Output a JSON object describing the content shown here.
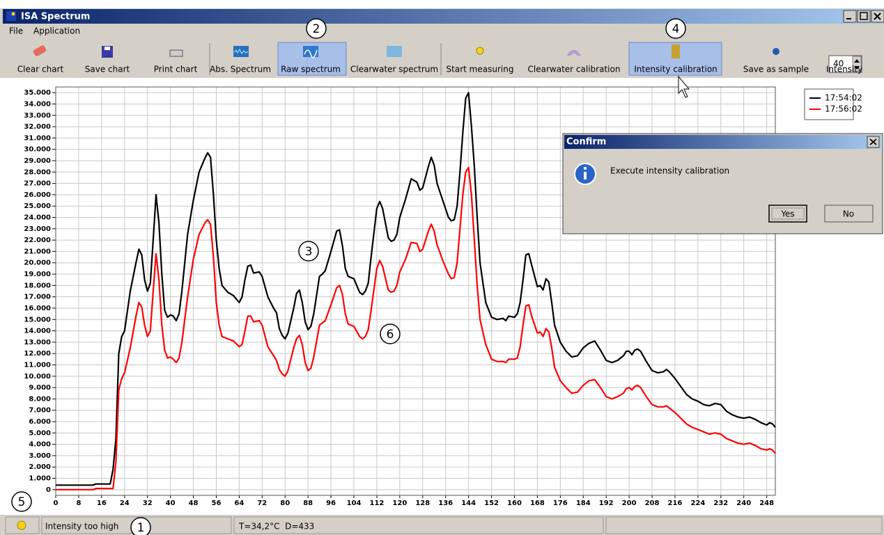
{
  "window": {
    "title": "ISA Spectrum"
  },
  "menu": [
    "File",
    "Application"
  ],
  "toolbar": [
    "Clear chart",
    "Save chart",
    "Print chart",
    "Abs. Spectrum",
    "Raw spectrum",
    "Clearwater spectrum",
    "Start measuring",
    "Clearwater calibration",
    "Intensity calibration",
    "Save as sample",
    "Intensity"
  ],
  "intensity_value": 40,
  "callouts": [
    "1",
    "2",
    "3",
    "4",
    "5",
    "6"
  ],
  "dialog": {
    "title": "Confirm",
    "message": "Execute intensity calibration",
    "buttons": [
      "Yes",
      "No"
    ]
  },
  "status_bar": [
    "Intensity too high",
    "T=34,2°C  D=433"
  ],
  "chart_data": {
    "type": "line",
    "legend": "upper right",
    "grid": true,
    "xlim": [
      0,
      251
    ],
    "ylim": [
      -500,
      35500
    ],
    "xticks": [
      0,
      8,
      16,
      24,
      32,
      40,
      48,
      56,
      64,
      72,
      80,
      88,
      96,
      104,
      112,
      120,
      128,
      136,
      144,
      152,
      160,
      168,
      176,
      184,
      192,
      200,
      208,
      216,
      224,
      232,
      240,
      248
    ],
    "yticks": [
      0,
      {
        "value": 1000,
        "label": "1.000"
      },
      {
        "value": 2000,
        "label": "2.000"
      },
      {
        "value": 3000,
        "label": "3.000"
      },
      {
        "value": 4000,
        "label": "4.000"
      },
      {
        "value": 5000,
        "label": "5.000"
      },
      {
        "value": 6000,
        "label": "6.000"
      },
      {
        "value": 7000,
        "label": "7.000"
      },
      {
        "value": 8000,
        "label": "8.000"
      },
      {
        "value": 9000,
        "label": "9.000"
      },
      {
        "value": 10000,
        "label": "10.000"
      },
      {
        "value": 11000,
        "label": "11.000"
      },
      {
        "value": 12000,
        "label": "12.000"
      },
      {
        "value": 13000,
        "label": "13.000"
      },
      {
        "value": 14000,
        "label": "14.000"
      },
      {
        "value": 15000,
        "label": "15.000"
      },
      {
        "value": 16000,
        "label": "16.000"
      },
      {
        "value": 17000,
        "label": "17.000"
      },
      {
        "value": 18000,
        "label": "18.000"
      },
      {
        "value": 19000,
        "label": "19.000"
      },
      {
        "value": 20000,
        "label": "20.000"
      },
      {
        "value": 21000,
        "label": "21.000"
      },
      {
        "value": 22000,
        "label": "22.000"
      },
      {
        "value": 23000,
        "label": "23.000"
      },
      {
        "value": 24000,
        "label": "24.000"
      },
      {
        "value": 25000,
        "label": "25.000"
      },
      {
        "value": 26000,
        "label": "26.000"
      },
      {
        "value": 27000,
        "label": "27.000"
      },
      {
        "value": 28000,
        "label": "28.000"
      },
      {
        "value": 29000,
        "label": "29.000"
      },
      {
        "value": 30000,
        "label": "30.000"
      },
      {
        "value": 31000,
        "label": "31.000"
      },
      {
        "value": 32000,
        "label": "32.000"
      },
      {
        "value": 33000,
        "label": "33.000"
      },
      {
        "value": 34000,
        "label": "34.000"
      },
      {
        "value": 35000,
        "label": "35.000"
      }
    ],
    "x": [
      0,
      13,
      14,
      19,
      20,
      21,
      22,
      23,
      24,
      26,
      28,
      29,
      30,
      31,
      32,
      33,
      34,
      35,
      36,
      37,
      38,
      39,
      40,
      41,
      42,
      43,
      44,
      46,
      48,
      50,
      52,
      53,
      54,
      55,
      56,
      57,
      58,
      60,
      62,
      64,
      65,
      66,
      67,
      68,
      69,
      71,
      72,
      74,
      76,
      77,
      78,
      79,
      80,
      81,
      83,
      84,
      85,
      86,
      87,
      88,
      89,
      90,
      92,
      93,
      94,
      96,
      98,
      99,
      100,
      101,
      102,
      104,
      106,
      107,
      108,
      109,
      110,
      112,
      113,
      114,
      116,
      117,
      118,
      119,
      120,
      122,
      124,
      126,
      127,
      128,
      130,
      131,
      132,
      133,
      135,
      137,
      138,
      139,
      140,
      141,
      142,
      143,
      144,
      145,
      146,
      147,
      148,
      150,
      152,
      154,
      156,
      157,
      158,
      160,
      161,
      162,
      163,
      164,
      165,
      166,
      168,
      169,
      170,
      171,
      172,
      173,
      174,
      176,
      178,
      180,
      182,
      184,
      186,
      188,
      190,
      192,
      194,
      196,
      198,
      199,
      200,
      201,
      202,
      203,
      204,
      206,
      208,
      210,
      212,
      213,
      214,
      216,
      218,
      220,
      222,
      224,
      226,
      228,
      230,
      232,
      234,
      236,
      238,
      240,
      242,
      244,
      246,
      248,
      249,
      250,
      251
    ],
    "series": [
      {
        "name": "17:54:02",
        "color": "#000000",
        "values": [
          400,
          400,
          500,
          500,
          1800,
          4500,
          12000,
          13500,
          14000,
          17500,
          20000,
          21200,
          20700,
          18500,
          17500,
          18200,
          22000,
          26000,
          23500,
          19000,
          15800,
          15200,
          15400,
          15300,
          14900,
          15500,
          17500,
          22500,
          25500,
          28000,
          29200,
          29700,
          29300,
          26000,
          22000,
          19500,
          18000,
          17400,
          17100,
          16500,
          17000,
          18500,
          19700,
          19800,
          19100,
          19200,
          18800,
          17000,
          16000,
          15600,
          14200,
          13600,
          13300,
          13800,
          16000,
          17300,
          17600,
          16500,
          14800,
          14100,
          14400,
          15500,
          18800,
          19000,
          19300,
          21000,
          22800,
          22900,
          21500,
          19500,
          18800,
          18600,
          17400,
          17200,
          17500,
          18200,
          20500,
          24800,
          25400,
          24800,
          22200,
          21900,
          22000,
          22500,
          24000,
          25600,
          27400,
          27100,
          26400,
          26600,
          28500,
          29300,
          28600,
          27000,
          25500,
          24000,
          23700,
          23800,
          25000,
          28000,
          31500,
          34500,
          35000,
          32000,
          28500,
          24000,
          20000,
          16500,
          15200,
          15000,
          15100,
          14900,
          15300,
          15200,
          15500,
          16500,
          18500,
          20700,
          20800,
          19800,
          17900,
          18000,
          17600,
          18600,
          18300,
          16500,
          14500,
          13000,
          12200,
          11700,
          11800,
          12500,
          12900,
          13100,
          12300,
          11400,
          11200,
          11400,
          11800,
          12200,
          12200,
          11900,
          12300,
          12400,
          12200,
          11300,
          10500,
          10300,
          10400,
          10600,
          10400,
          9800,
          9100,
          8400,
          8000,
          7800,
          7500,
          7400,
          7600,
          7500,
          6900,
          6600,
          6400,
          6300,
          6400,
          6200,
          5900,
          5700,
          5900,
          5800,
          5500
        ]
      },
      {
        "name": "17:56:02",
        "color": "#ff0000",
        "values": [
          0,
          0,
          100,
          100,
          100,
          2500,
          8800,
          9800,
          10300,
          12500,
          15300,
          16500,
          16100,
          14500,
          13500,
          14000,
          17500,
          20800,
          18500,
          14500,
          12300,
          11600,
          11700,
          11500,
          11200,
          11600,
          13000,
          17000,
          20300,
          22500,
          23500,
          23800,
          23400,
          20500,
          16500,
          14500,
          13500,
          13300,
          13100,
          12600,
          12800,
          14000,
          15300,
          15300,
          14800,
          14900,
          14500,
          12600,
          11800,
          11400,
          10600,
          10200,
          10000,
          10500,
          12500,
          13300,
          13600,
          12800,
          11200,
          10500,
          10700,
          11700,
          14500,
          14700,
          14900,
          16300,
          17800,
          18000,
          17200,
          15500,
          14600,
          14400,
          13500,
          13300,
          13500,
          14100,
          15800,
          19500,
          20200,
          19700,
          17600,
          17400,
          17500,
          18000,
          19200,
          20300,
          21800,
          21700,
          21000,
          21200,
          22800,
          23400,
          22800,
          21600,
          20200,
          19000,
          18600,
          18700,
          20000,
          23000,
          26000,
          28000,
          28400,
          26000,
          22000,
          18000,
          15000,
          12800,
          11500,
          11300,
          11300,
          11200,
          11500,
          11500,
          11600,
          12600,
          14500,
          16200,
          16300,
          15300,
          13800,
          13900,
          13500,
          14200,
          13900,
          12500,
          10800,
          9600,
          9000,
          8500,
          8600,
          9200,
          9600,
          9700,
          9000,
          8200,
          8000,
          8200,
          8500,
          8900,
          9000,
          8800,
          9100,
          9200,
          9000,
          8200,
          7500,
          7300,
          7300,
          7400,
          7200,
          6800,
          6300,
          5800,
          5500,
          5300,
          5100,
          4900,
          5000,
          4900,
          4500,
          4300,
          4100,
          4000,
          4100,
          3900,
          3600,
          3500,
          3600,
          3500,
          3200
        ]
      }
    ]
  }
}
